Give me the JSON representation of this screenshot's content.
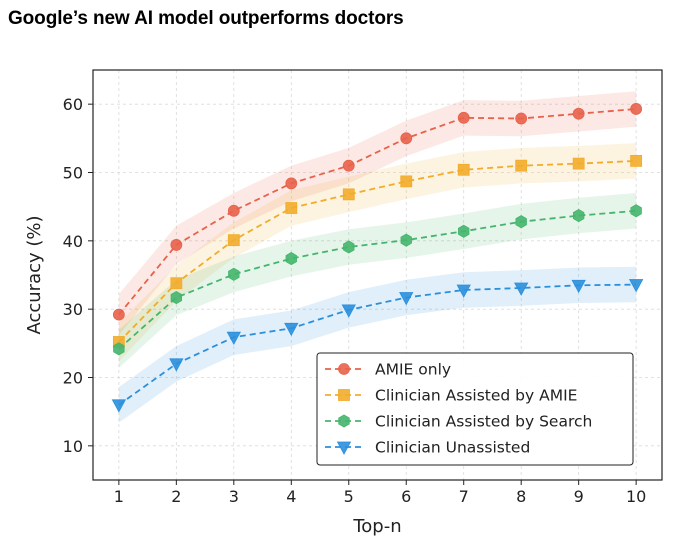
{
  "headline": "Google’s new AI model outperforms doctors",
  "chart_data": {
    "type": "line",
    "title": "Google’s new AI model outperforms doctors",
    "xlabel": "Top-n",
    "ylabel": "Accuracy (%)",
    "x": [
      1,
      2,
      3,
      4,
      5,
      6,
      7,
      8,
      9,
      10
    ],
    "xlim": [
      0.55,
      10.45
    ],
    "ylim": [
      5,
      65
    ],
    "yticks": [
      10,
      20,
      30,
      40,
      50,
      60
    ],
    "grid": true,
    "legend_position": "lower-right",
    "series": [
      {
        "name": "AMIE only",
        "marker": "circle",
        "color": "#e8624a",
        "values": [
          29.2,
          39.4,
          44.4,
          48.4,
          51.0,
          55.0,
          58.0,
          57.9,
          58.6,
          59.3
        ],
        "band": [
          3.0,
          2.8,
          2.6,
          2.6,
          2.6,
          2.6,
          2.6,
          2.6,
          2.6,
          2.6
        ]
      },
      {
        "name": "Clinician Assisted by AMIE",
        "marker": "square",
        "color": "#f2ac2b",
        "values": [
          25.2,
          33.8,
          40.1,
          44.8,
          46.8,
          48.7,
          50.4,
          51.0,
          51.3,
          51.7
        ],
        "band": [
          2.8,
          2.6,
          2.6,
          2.6,
          2.6,
          2.6,
          2.6,
          2.6,
          2.6,
          2.6
        ]
      },
      {
        "name": "Clinician Assisted by Search",
        "marker": "hexagon",
        "color": "#45b56d",
        "values": [
          24.2,
          31.7,
          35.1,
          37.4,
          39.1,
          40.1,
          41.4,
          42.8,
          43.7,
          44.4
        ],
        "band": [
          2.8,
          2.6,
          2.6,
          2.6,
          2.6,
          2.6,
          2.6,
          2.6,
          2.6,
          2.6
        ]
      },
      {
        "name": "Clinician Unassisted",
        "marker": "triangle-down",
        "color": "#2b8fdc",
        "values": [
          16.0,
          22.0,
          25.9,
          27.2,
          29.9,
          31.7,
          32.8,
          33.1,
          33.5,
          33.6
        ],
        "band": [
          2.6,
          2.6,
          2.6,
          2.6,
          2.6,
          2.6,
          2.6,
          2.6,
          2.6,
          2.6
        ]
      }
    ]
  }
}
